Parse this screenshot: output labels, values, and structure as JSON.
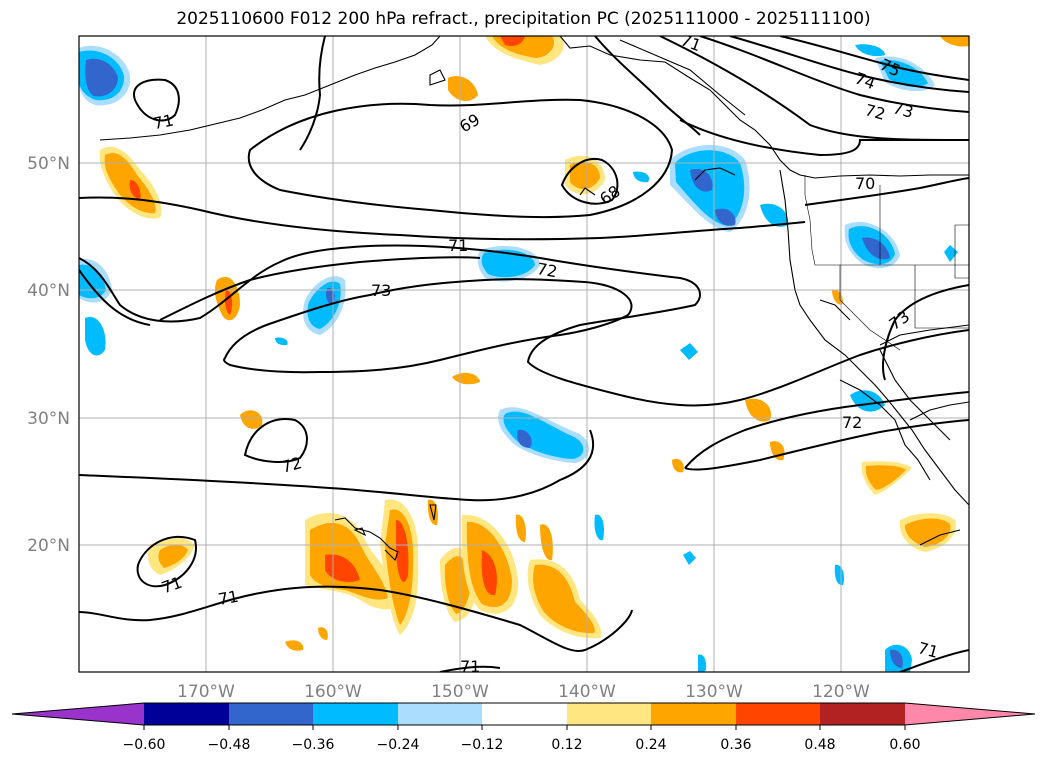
{
  "title": "2025110600 F012 200 hPa refract., precipitation PC (2025111000 - 2025111100)",
  "lat_labels": [
    "50°N",
    "40°N",
    "30°N",
    "20°N"
  ],
  "lon_labels": [
    "170°W",
    "160°W",
    "150°W",
    "140°W",
    "130°W",
    "120°W"
  ],
  "contour_labels": [
    "71",
    "69",
    "68",
    "71",
    "72",
    "73",
    "70",
    "74",
    "75",
    "72",
    "73",
    "73",
    "72",
    "72",
    "71",
    "71",
    "71",
    "71",
    "71"
  ],
  "colorbar": {
    "ticks": [
      "−0.60",
      "−0.48",
      "−0.36",
      "−0.24",
      "−0.12",
      "0.12",
      "0.24",
      "0.36",
      "0.48",
      "0.60"
    ],
    "colors": [
      "#9933cc",
      "#000099",
      "#3366cc",
      "#00bbff",
      "#aaddff",
      "#ffffff",
      "#ffe680",
      "#ffa500",
      "#ff4500",
      "#b22222",
      "#ff88aa"
    ]
  },
  "colors": {
    "contour": "#000000",
    "grid": "#b0b0b0",
    "coast": "#000000"
  }
}
